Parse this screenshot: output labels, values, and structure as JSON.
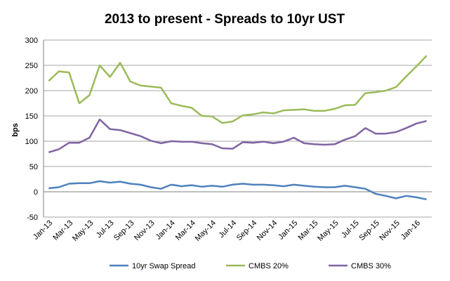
{
  "chart_data": {
    "type": "line",
    "title": "2013 to present - Spreads to 10yr UST",
    "xlabel": "",
    "ylabel": "bps",
    "ylim": [
      -50,
      300
    ],
    "ytick_step": 50,
    "grid": true,
    "legend_position": "bottom",
    "x": [
      "Jan-13",
      "Feb-13",
      "Mar-13",
      "Apr-13",
      "May-13",
      "Jun-13",
      "Jul-13",
      "Aug-13",
      "Sep-13",
      "Oct-13",
      "Nov-13",
      "Dec-13",
      "Jan-14",
      "Feb-14",
      "Mar-14",
      "Apr-14",
      "May-14",
      "Jun-14",
      "Jul-14",
      "Aug-14",
      "Sep-14",
      "Oct-14",
      "Nov-14",
      "Dec-14",
      "Jan-15",
      "Feb-15",
      "Mar-15",
      "Apr-15",
      "May-15",
      "Jun-15",
      "Jul-15",
      "Aug-15",
      "Sep-15",
      "Oct-15",
      "Nov-15",
      "Dec-15",
      "Jan-16",
      "Feb-16"
    ],
    "xtick_labels": [
      "Jan-13",
      "Mar-13",
      "May-13",
      "Jul-13",
      "Sep-13",
      "Nov-13",
      "Jan-14",
      "Mar-14",
      "May-14",
      "Jul-14",
      "Sep-14",
      "Nov-14",
      "Jan-15",
      "Mar-15",
      "May-15",
      "Jul-15",
      "Sep-15",
      "Nov-15",
      "Jan-16"
    ],
    "series": [
      {
        "name": "10yr Swap Spread",
        "color": "#4f81bd",
        "values": [
          7,
          9,
          16,
          17,
          17,
          21,
          18,
          20,
          16,
          14,
          9,
          6,
          14,
          11,
          13,
          10,
          12,
          10,
          14,
          16,
          14,
          14,
          13,
          11,
          14,
          12,
          10,
          9,
          9,
          12,
          9,
          6,
          -4,
          -8,
          -13,
          -8,
          -11,
          -15
        ]
      },
      {
        "name": "CMBS 20%",
        "color": "#9bbb59",
        "values": [
          219,
          238,
          236,
          175,
          191,
          250,
          227,
          255,
          218,
          210,
          208,
          206,
          175,
          170,
          166,
          150,
          149,
          136,
          139,
          151,
          153,
          157,
          155,
          161,
          162,
          163,
          160,
          160,
          164,
          171,
          172,
          195,
          197,
          200,
          207,
          228,
          248,
          269
        ]
      },
      {
        "name": "CMBS 30%",
        "color": "#8064a2",
        "values": [
          78,
          84,
          97,
          97,
          107,
          143,
          124,
          122,
          116,
          110,
          101,
          96,
          100,
          99,
          99,
          96,
          94,
          86,
          85,
          98,
          97,
          99,
          96,
          99,
          107,
          96,
          94,
          93,
          94,
          103,
          110,
          126,
          115,
          115,
          118,
          126,
          135,
          140
        ]
      }
    ]
  }
}
